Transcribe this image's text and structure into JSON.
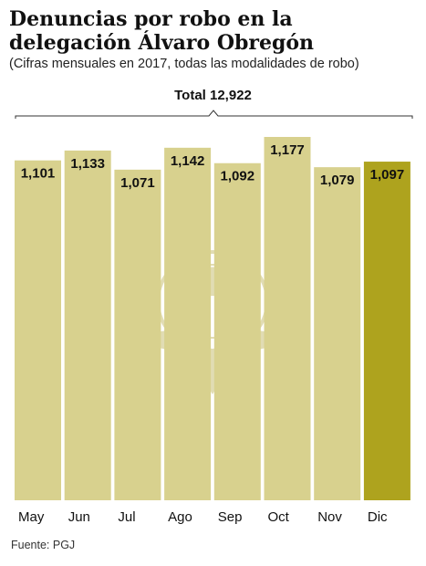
{
  "header": {
    "title": "Denuncias por robo en la delegación Álvaro Obregón",
    "subtitle": "(Cifras mensuales en 2017, todas las modalidades de robo)",
    "total_label": "Total 12,922"
  },
  "source": "Fuente: PGJ",
  "colors": {
    "bar": "#d8d18e",
    "bar_highlight": "#aea31e",
    "bar_stroke": "#ffffff",
    "watermark": "#c9c076"
  },
  "watermark_icon": "eagle-seal-icon",
  "chart_data": {
    "type": "bar",
    "title": "Denuncias por robo en la delegación Álvaro Obregón",
    "subtitle": "(Cifras mensuales en 2017, todas las modalidades de robo)",
    "categories": [
      "May",
      "Jun",
      "Jul",
      "Ago",
      "Sep",
      "Oct",
      "Nov",
      "Dic"
    ],
    "values": [
      1101,
      1133,
      1071,
      1142,
      1092,
      1177,
      1079,
      1097
    ],
    "value_labels": [
      "1,101",
      "1,133",
      "1,071",
      "1,142",
      "1,092",
      "1,177",
      "1,079",
      "1,097"
    ],
    "highlight_index": 7,
    "ylim": [
      0,
      1177
    ],
    "xlabel": "",
    "ylabel": "",
    "grid": false,
    "legend": "none",
    "annotation": "Total 12,922"
  }
}
